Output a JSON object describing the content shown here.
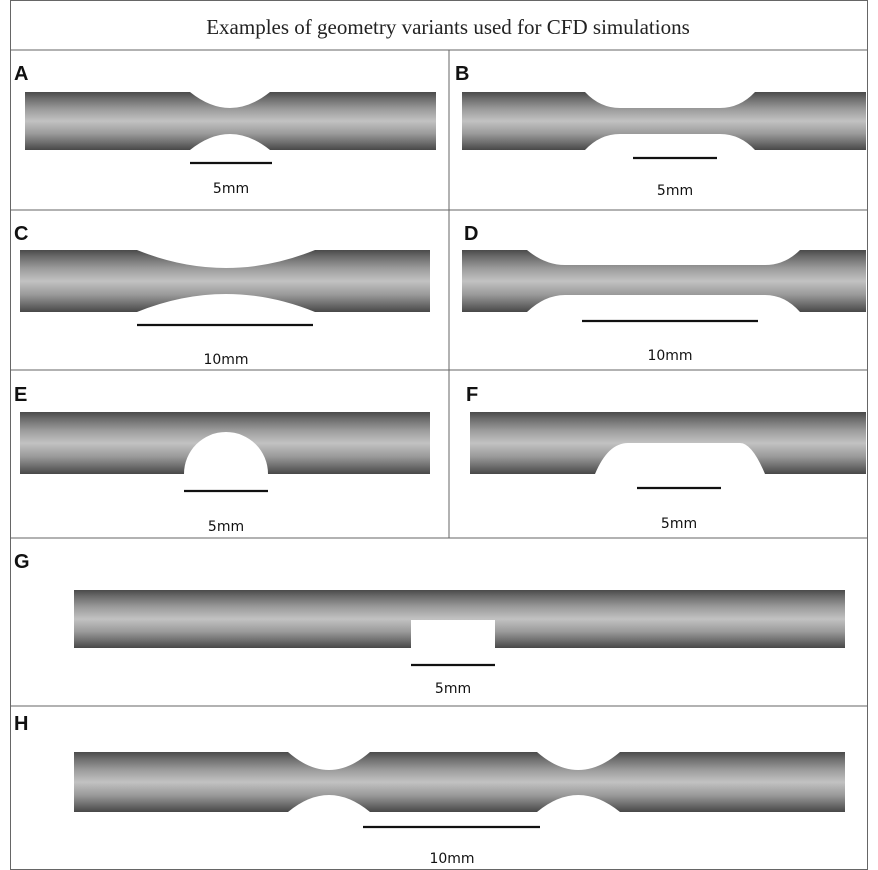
{
  "title": "Examples of geometry variants used for CFD simulations",
  "panels": [
    {
      "label": "A",
      "scale": "5mm"
    },
    {
      "label": "B",
      "scale": "5mm"
    },
    {
      "label": "C",
      "scale": "10mm"
    },
    {
      "label": "D",
      "scale": "10mm"
    },
    {
      "label": "E",
      "scale": "5mm"
    },
    {
      "label": "F",
      "scale": "5mm"
    },
    {
      "label": "G",
      "scale": "5mm"
    },
    {
      "label": "H",
      "scale": "10mm"
    }
  ]
}
